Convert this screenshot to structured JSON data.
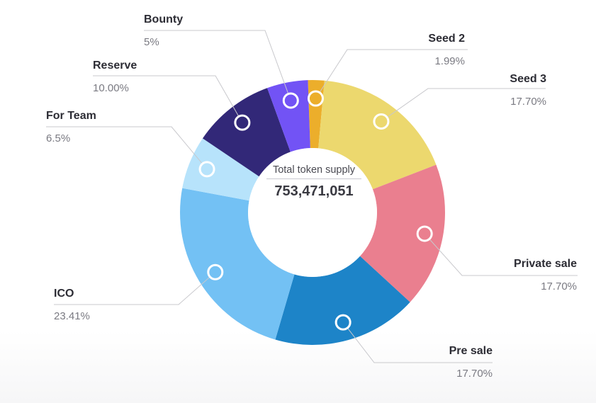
{
  "chart_data": {
    "type": "pie",
    "center_caption": "Total token supply",
    "center_value": "753,471,051",
    "slices": [
      {
        "name": "Seed 2",
        "percent": 1.99,
        "label": "1.99%",
        "color": "#ecae2b"
      },
      {
        "name": "Seed 3",
        "percent": 17.7,
        "label": "17.70%",
        "color": "#ecd86e"
      },
      {
        "name": "Private sale",
        "percent": 17.7,
        "label": "17.70%",
        "color": "#ea7f8f"
      },
      {
        "name": "Pre sale",
        "percent": 17.7,
        "label": "17.70%",
        "color": "#1d84c8"
      },
      {
        "name": "ICO",
        "percent": 23.41,
        "label": "23.41%",
        "color": "#73c1f4"
      },
      {
        "name": "For Team",
        "percent": 6.5,
        "label": "6.5%",
        "color": "#b7e3fb"
      },
      {
        "name": "Reserve",
        "percent": 10.0,
        "label": "10.00%",
        "color": "#322878"
      },
      {
        "name": "Bounty",
        "percent": 5,
        "label": "5%",
        "color": "#7253f5"
      }
    ]
  }
}
